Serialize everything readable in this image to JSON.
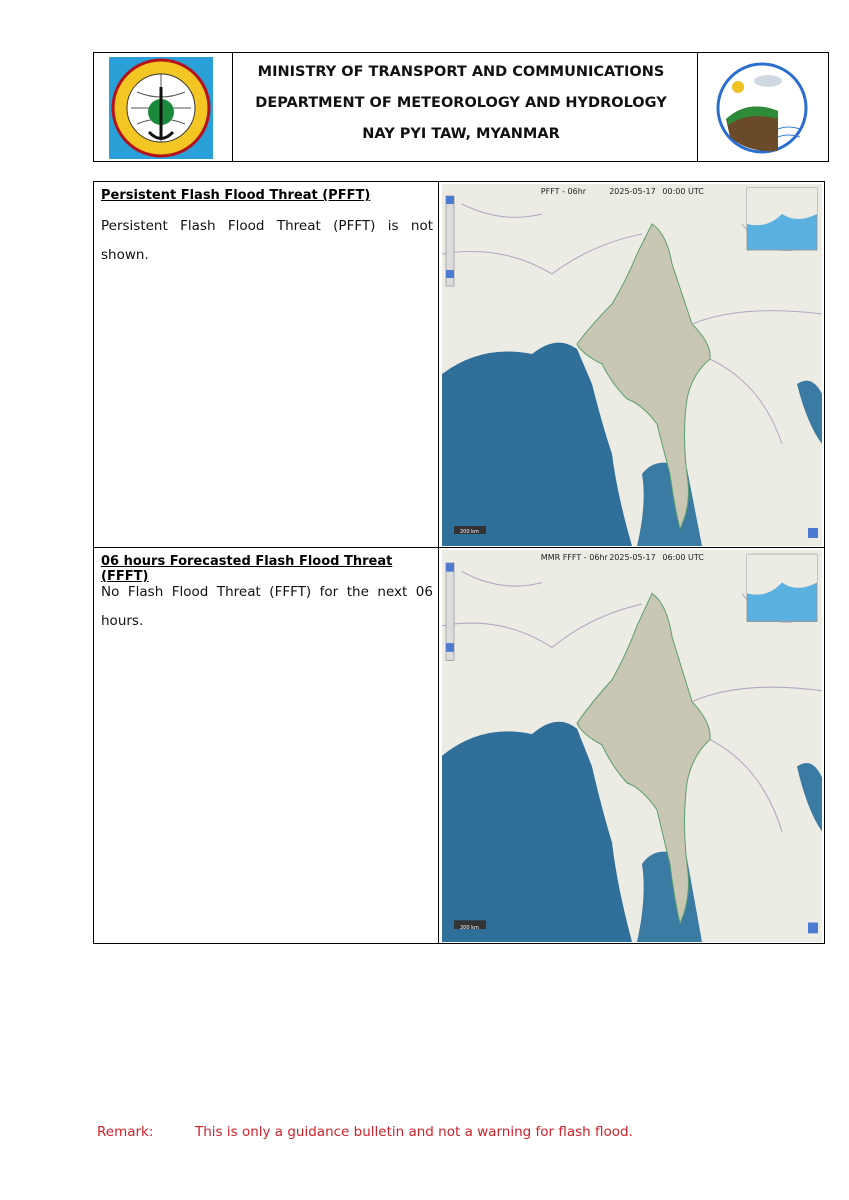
{
  "header": {
    "lines": [
      "MINISTRY OF TRANSPORT AND COMMUNICATIONS",
      "DEPARTMENT OF METEOROLOGY AND HYDROLOGY",
      "NAY PYI TAW, MYANMAR"
    ]
  },
  "sections": [
    {
      "title": "Persistent Flash Flood Threat (PFFT)",
      "text": "Persistent Flash Flood Threat (PFFT) is not shown.",
      "map": {
        "title": "PFFT - 06hr",
        "date": "2025-05-17",
        "time": "00:00 UTC",
        "scale": "200 km"
      }
    },
    {
      "title": "06 hours Forecasted Flash Flood Threat (FFFT)",
      "text": "No Flash Flood Threat (FFFT) for the next 06 hours.",
      "map": {
        "title": "MMR FFFT - 06hr",
        "date": "2025-05-17",
        "time": "06:00 UTC",
        "scale": "200 km"
      }
    }
  ],
  "remark": {
    "label": "Remark:",
    "text": "This is only a guidance bulletin and not a warning for flash flood."
  }
}
